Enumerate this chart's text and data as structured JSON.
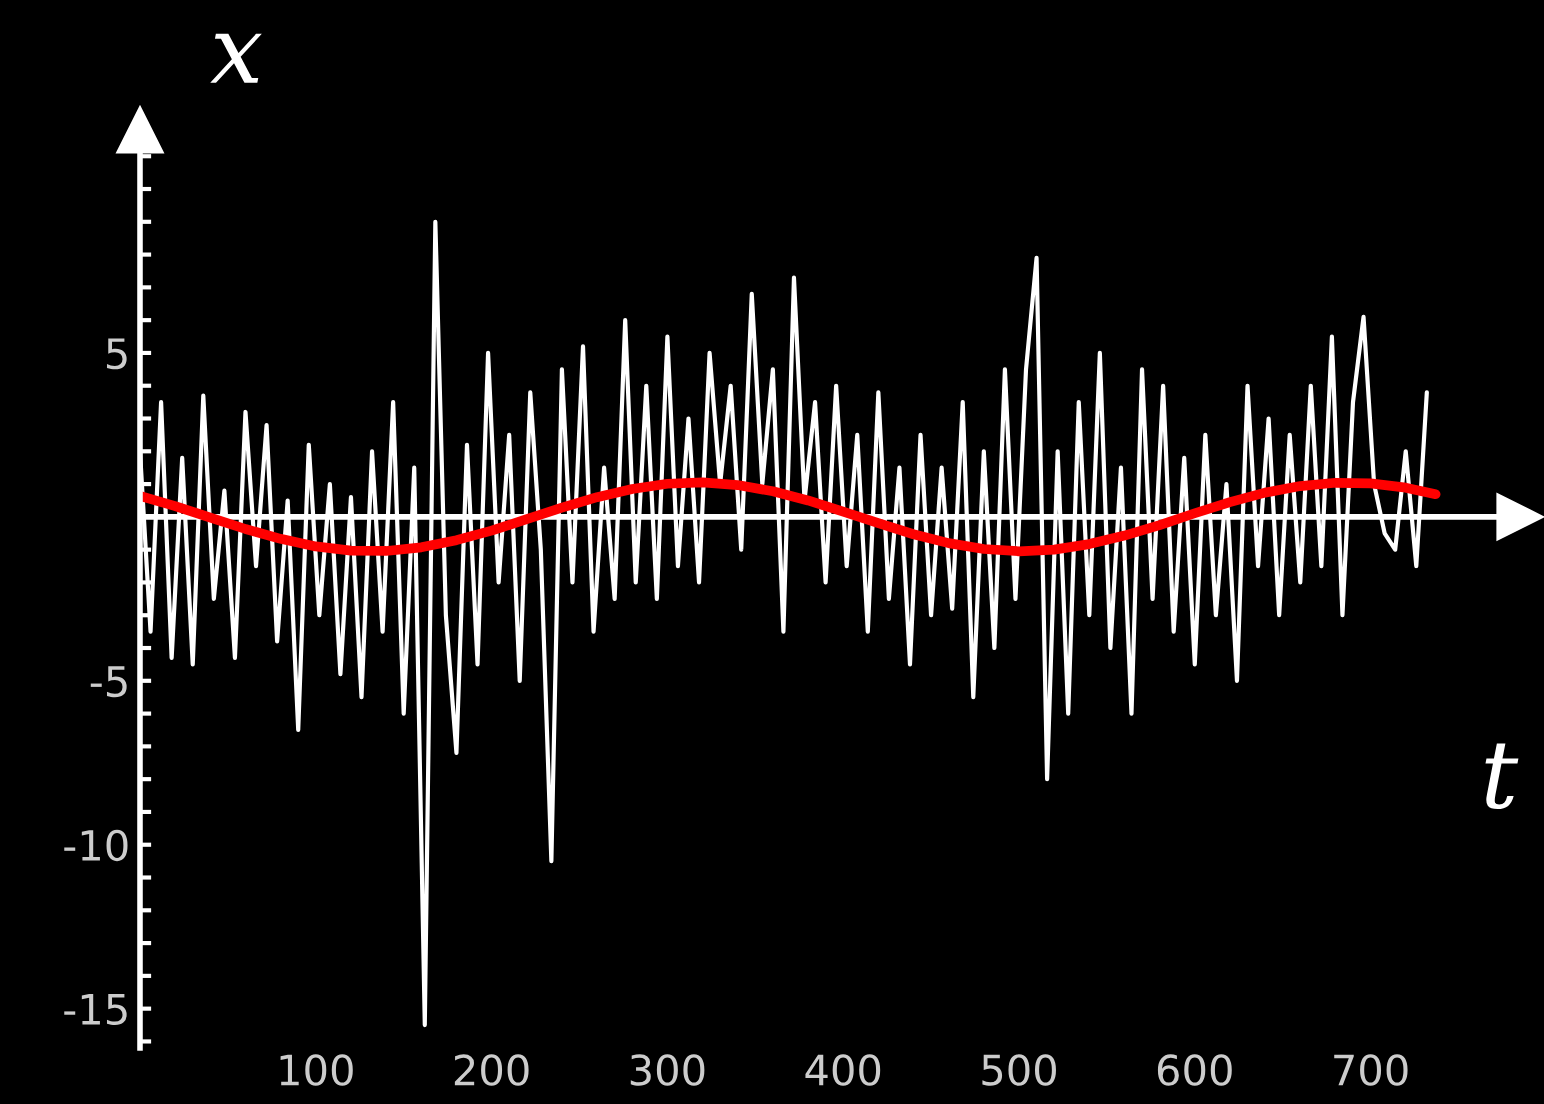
{
  "chart_data": {
    "type": "line",
    "xlabel": "t",
    "ylabel": "x",
    "xlim": [
      0,
      785
    ],
    "ylim": [
      -16.2,
      11.8
    ],
    "xticks": [
      100,
      200,
      300,
      400,
      500,
      600,
      700
    ],
    "yticks": [
      {
        "value": -16,
        "label": null
      },
      -15,
      {
        "value": -14,
        "label": null
      },
      {
        "value": -13,
        "label": null
      },
      {
        "value": -12,
        "label": null
      },
      {
        "value": -11,
        "label": null
      },
      -10,
      {
        "value": -9,
        "label": null
      },
      {
        "value": -8,
        "label": null
      },
      {
        "value": -7,
        "label": null
      },
      {
        "value": -6,
        "label": null
      },
      -5,
      {
        "value": -4,
        "label": null
      },
      {
        "value": -3,
        "label": null
      },
      {
        "value": -2,
        "label": null
      },
      {
        "value": -1,
        "label": null
      },
      {
        "value": 1,
        "label": null
      },
      {
        "value": 2,
        "label": null
      },
      {
        "value": 3,
        "label": null
      },
      {
        "value": 4,
        "label": null
      },
      5,
      {
        "value": 6,
        "label": null
      },
      {
        "value": 7,
        "label": null
      },
      {
        "value": 8,
        "label": null
      },
      {
        "value": 9,
        "label": null
      },
      {
        "value": 10,
        "label": null
      },
      {
        "value": 11,
        "label": null
      }
    ],
    "series": [
      {
        "color": "#ffffff",
        "x": [
          0,
          6,
          12,
          18,
          24,
          30,
          36,
          42,
          48,
          54,
          60,
          66,
          72,
          78,
          84,
          90,
          96,
          102,
          108,
          114,
          120,
          126,
          132,
          138,
          144,
          150,
          156,
          162,
          168,
          174,
          180,
          186,
          192,
          198,
          204,
          210,
          216,
          222,
          228,
          234,
          240,
          246,
          252,
          258,
          264,
          270,
          276,
          282,
          288,
          294,
          300,
          306,
          312,
          318,
          324,
          330,
          336,
          342,
          348,
          354,
          360,
          366,
          372,
          378,
          384,
          390,
          396,
          402,
          408,
          414,
          420,
          426,
          432,
          438,
          444,
          450,
          456,
          462,
          468,
          474,
          480,
          486,
          492,
          498,
          504,
          510,
          516,
          522,
          528,
          534,
          540,
          546,
          552,
          558,
          564,
          570,
          576,
          582,
          588,
          594,
          600,
          606,
          612,
          618,
          624,
          630,
          636,
          642,
          648,
          654,
          660,
          666,
          672,
          678,
          684,
          690,
          696,
          702,
          708,
          714,
          720,
          726,
          732
        ],
        "values": [
          2.0,
          -3.5,
          3.5,
          -4.3,
          1.8,
          -4.5,
          3.7,
          -2.5,
          0.8,
          -4.3,
          3.2,
          -1.5,
          2.8,
          -3.8,
          0.5,
          -6.5,
          2.2,
          -3.0,
          1.0,
          -4.8,
          0.6,
          -5.5,
          2.0,
          -3.5,
          3.5,
          -6.0,
          1.5,
          -15.5,
          9.0,
          -3.0,
          -7.2,
          2.2,
          -4.5,
          5.0,
          -2.0,
          2.5,
          -5.0,
          3.8,
          -1.0,
          -10.5,
          4.5,
          -2.0,
          5.2,
          -3.5,
          1.5,
          -2.5,
          6.0,
          -2.0,
          4.0,
          -2.5,
          5.5,
          -1.5,
          3.0,
          -2.0,
          5.0,
          1.0,
          4.0,
          -1.0,
          6.8,
          1.0,
          4.5,
          -3.5,
          7.3,
          0.5,
          3.5,
          -2.0,
          4.0,
          -1.5,
          2.5,
          -3.5,
          3.8,
          -2.5,
          1.5,
          -4.5,
          2.5,
          -3.0,
          1.5,
          -2.8,
          3.5,
          -5.5,
          2.0,
          -4.0,
          4.5,
          -2.5,
          4.5,
          7.9,
          -8.0,
          2.0,
          -6.0,
          3.5,
          -3.0,
          5.0,
          -4.0,
          1.5,
          -6.0,
          4.5,
          -2.5,
          4.0,
          -3.5,
          1.8,
          -4.5,
          2.5,
          -3.0,
          1.0,
          -5.0,
          4.0,
          -1.5,
          3.0,
          -3.0,
          2.5,
          -2.0,
          4.0,
          -1.5,
          5.5,
          -3.0,
          3.5,
          6.1,
          1.0,
          -0.5,
          -1.0,
          2.0,
          -1.5,
          3.8
        ]
      },
      {
        "color": "#ff0000",
        "x": [
          0,
          20,
          40,
          60,
          80,
          100,
          120,
          140,
          160,
          180,
          200,
          220,
          240,
          260,
          280,
          300,
          320,
          340,
          360,
          380,
          400,
          420,
          440,
          460,
          480,
          500,
          520,
          540,
          560,
          580,
          600,
          620,
          640,
          660,
          680,
          700,
          720,
          737
        ],
        "values": [
          0.64,
          0.33,
          -0.02,
          -0.37,
          -0.67,
          -0.9,
          -1.03,
          -1.04,
          -0.93,
          -0.71,
          -0.42,
          -0.07,
          0.28,
          0.6,
          0.85,
          1.01,
          1.05,
          0.97,
          0.78,
          0.5,
          0.16,
          -0.19,
          -0.53,
          -0.8,
          -0.98,
          -1.05,
          -1.0,
          -0.83,
          -0.57,
          -0.25,
          0.11,
          0.45,
          0.74,
          0.94,
          1.04,
          1.02,
          0.89,
          0.69
        ]
      }
    ]
  }
}
